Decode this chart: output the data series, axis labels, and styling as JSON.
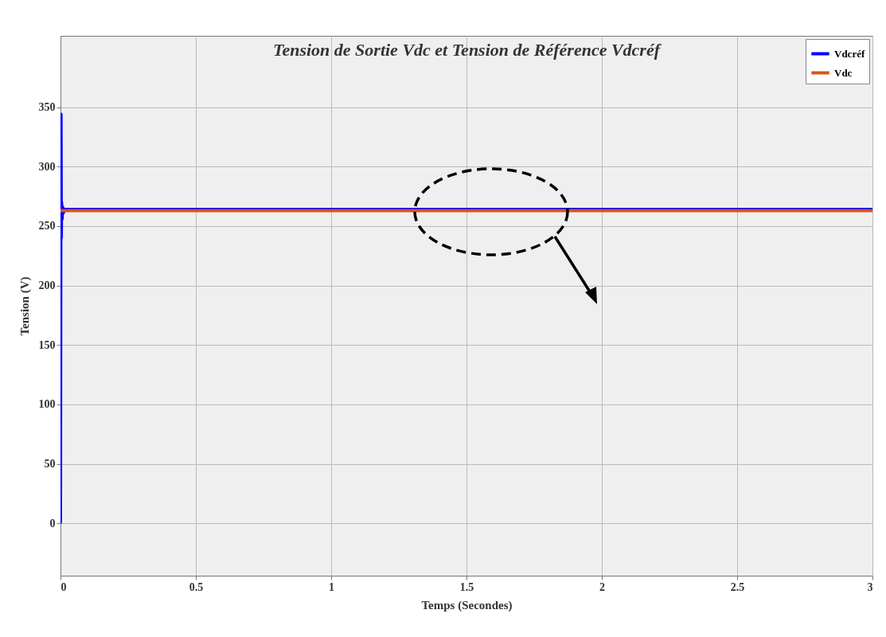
{
  "chart_data": {
    "type": "line",
    "title": "Tension de Sortie Vdc et Tension de Référence Vdcréf",
    "xlabel": "Temps (Secondes)",
    "ylabel": "Tension (V)",
    "xlim": [
      0,
      3
    ],
    "xticks": [
      0,
      0.5,
      1,
      1.5,
      2,
      2.5,
      3
    ],
    "ylim": [
      -44,
      410
    ],
    "yticks": [
      0,
      50,
      100,
      150,
      200,
      250,
      300,
      350
    ],
    "series": [
      {
        "name": "Vdcréf",
        "color": "#0000ff",
        "x": [
          0,
          0.001,
          0.002,
          0.003,
          0.004,
          0.006,
          0.008,
          0.01,
          0.015,
          3
        ],
        "values": [
          0,
          200,
          344,
          240,
          270,
          256,
          266,
          261,
          264,
          264
        ]
      },
      {
        "name": "Vdc",
        "color": "#d95319",
        "x": [
          0,
          3
        ],
        "values": [
          263,
          263
        ]
      }
    ],
    "grid": true,
    "legend": "top right",
    "line_style": "solid",
    "marker": "none"
  }
}
